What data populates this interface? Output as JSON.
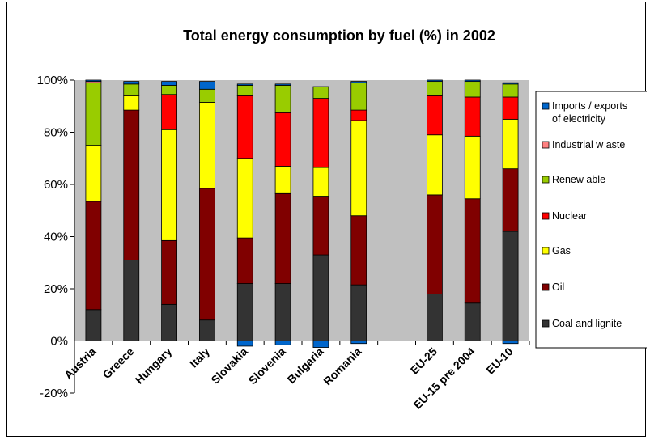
{
  "chart_data": {
    "type": "bar",
    "stacked": true,
    "title": "Total energy consumption by fuel (%) in 2002",
    "xlabel": "",
    "ylabel": "",
    "ylim": [
      -20,
      100
    ],
    "yticks": [
      "-20%",
      "0%",
      "20%",
      "40%",
      "60%",
      "80%",
      "100%"
    ],
    "ytick_values": [
      -20,
      0,
      20,
      40,
      60,
      80,
      100
    ],
    "grid": false,
    "plot_background": "#c0c0c0",
    "legend_position": "right",
    "categories": [
      "Austria",
      "Greece",
      "Hungary",
      "Italy",
      "Slovakia",
      "Slovenia",
      "Bulgaria",
      "Romania",
      "",
      "EU-25",
      "EU-15 pre 2004",
      "EU-10"
    ],
    "series": [
      {
        "name": "Coal and lignite",
        "color": "#333333",
        "values": [
          12,
          31,
          14,
          8,
          22,
          22,
          33,
          21.5,
          0,
          18,
          14.5,
          42
        ]
      },
      {
        "name": "Oil",
        "color": "#800000",
        "values": [
          41.5,
          57.5,
          24.5,
          50.5,
          17.5,
          34.5,
          22.5,
          26.5,
          0,
          38,
          40,
          24
        ]
      },
      {
        "name": "Gas",
        "color": "#ffff00",
        "values": [
          21.5,
          5.5,
          42.5,
          33,
          30.5,
          10.5,
          11,
          36.5,
          0,
          23,
          24,
          19
        ]
      },
      {
        "name": "Nuclear",
        "color": "#ff0000",
        "values": [
          0,
          0,
          13.5,
          0,
          24,
          20.5,
          26.5,
          4,
          0,
          15,
          15,
          8.5
        ]
      },
      {
        "name": "Renew able",
        "color": "#99cc00",
        "values": [
          24,
          4.5,
          3.5,
          5,
          4,
          10.5,
          4.5,
          10.5,
          0,
          5.5,
          6,
          5
        ]
      },
      {
        "name": "Industrial w aste",
        "color": "#ff8080",
        "values": [
          0.5,
          0,
          0,
          0,
          0,
          0,
          0,
          0,
          0,
          0,
          0,
          0
        ]
      },
      {
        "name": "Imports / exports of electricity",
        "color": "#0066cc",
        "values": [
          0.5,
          1,
          1.5,
          3,
          0.5,
          0.5,
          0,
          0.5,
          0,
          0.5,
          0.5,
          0.5
        ]
      }
    ],
    "negative_series": [
      {
        "name": "Imports / exports of electricity",
        "color": "#0066cc",
        "values": [
          0,
          0,
          0,
          0,
          -2,
          -1.5,
          -2.5,
          -1,
          0,
          0,
          0,
          -1
        ]
      }
    ],
    "legend": [
      {
        "label_lines": [
          "Imports / exports",
          "of electricity"
        ],
        "color": "#0066cc"
      },
      {
        "label_lines": [
          "Industrial w aste"
        ],
        "color": "#ff8080"
      },
      {
        "label_lines": [
          "Renew able"
        ],
        "color": "#99cc00"
      },
      {
        "label_lines": [
          "Nuclear"
        ],
        "color": "#ff0000"
      },
      {
        "label_lines": [
          "Gas"
        ],
        "color": "#ffff00"
      },
      {
        "label_lines": [
          "Oil"
        ],
        "color": "#800000"
      },
      {
        "label_lines": [
          "Coal and lignite"
        ],
        "color": "#333333"
      }
    ]
  }
}
